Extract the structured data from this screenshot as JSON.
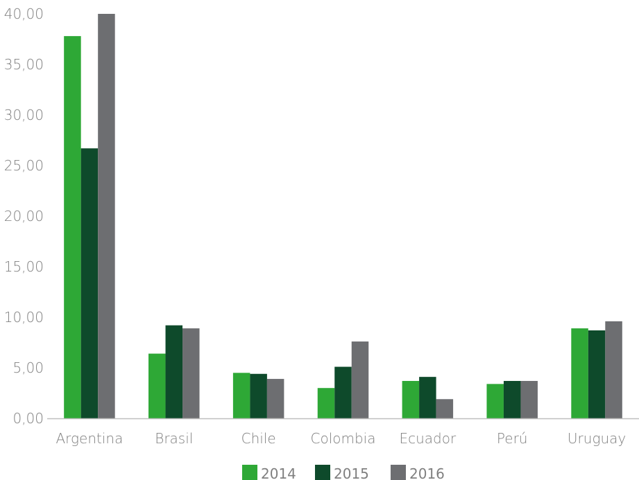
{
  "chart_data": {
    "type": "bar",
    "title": "",
    "xlabel": "",
    "ylabel": "",
    "categories": [
      "Argentina",
      "Brasil",
      "Chile",
      "Colombia",
      "Ecuador",
      "Perú",
      "Uruguay"
    ],
    "series": [
      {
        "name": "2014",
        "color": "#2ea836",
        "values": [
          37.8,
          6.4,
          4.5,
          3.0,
          3.7,
          3.4,
          8.9
        ]
      },
      {
        "name": "2015",
        "color": "#0e4a2b",
        "values": [
          26.7,
          9.2,
          4.4,
          5.1,
          4.1,
          3.7,
          8.7
        ]
      },
      {
        "name": "2016",
        "color": "#6d6e71",
        "values": [
          40.0,
          8.9,
          3.9,
          7.6,
          1.9,
          3.7,
          9.6
        ]
      }
    ],
    "ylim": [
      0,
      40
    ],
    "yticks": [
      0,
      5,
      10,
      15,
      20,
      25,
      30,
      35,
      40
    ],
    "ytick_labels": [
      "0,00",
      "5,00",
      "10,00",
      "15,00",
      "20,00",
      "25,00",
      "30,00",
      "35,00",
      "40,00"
    ],
    "grid": false,
    "legend_position": "bottom-center",
    "axis_color": "#bfbfbf",
    "text_color": "#7f7f7f"
  }
}
